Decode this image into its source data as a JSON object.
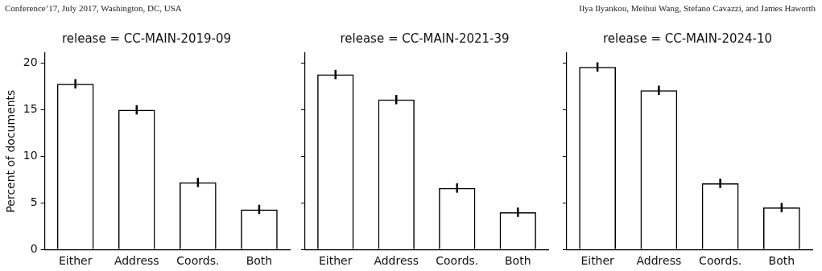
{
  "chart_data": [
    {
      "type": "bar",
      "title": "release = CC-MAIN-2019-09",
      "ylabel": "Percent of documents",
      "annotations": [
        "Conference’17, July 2017, Washington, DC, USA"
      ],
      "categories": [
        "Either",
        "Address",
        "Coords.",
        "Both"
      ],
      "values": [
        17.8,
        15.0,
        7.2,
        4.3
      ],
      "errors": [
        0.5,
        0.5,
        0.5,
        0.5
      ],
      "color": "#000000",
      "ylim": [
        0,
        21.1
      ],
      "yticks": [
        0,
        5,
        10,
        15,
        20
      ],
      "grid": false
    },
    {
      "type": "bar",
      "title": "release = CC-MAIN-2021-39",
      "categories": [
        "Either",
        "Address",
        "Coords.",
        "Both"
      ],
      "values": [
        18.8,
        16.1,
        6.6,
        4.0
      ],
      "errors": [
        0.5,
        0.5,
        0.5,
        0.5
      ],
      "color": "#000000",
      "ylim": [
        0,
        21.1
      ],
      "yticks": [
        0,
        5,
        10,
        15,
        20
      ],
      "tick_labels": "x",
      "grid": false
    },
    {
      "type": "bar",
      "title": "release = CC-MAIN-2024-10",
      "annotations": [
        "Ilya Ilyankou, Meihui Wang, Stefano Cavazzi, and James Haworth"
      ],
      "categories": [
        "Either",
        "Address",
        "Coords.",
        "Both"
      ],
      "values": [
        19.6,
        17.1,
        7.1,
        4.5
      ],
      "errors": [
        0.5,
        0.5,
        0.5,
        0.5
      ],
      "color": "#000000",
      "ylim": [
        0,
        21.1
      ],
      "yticks": [
        0,
        5,
        10,
        15,
        20
      ],
      "tick_labels": "x",
      "grid": false
    }
  ]
}
